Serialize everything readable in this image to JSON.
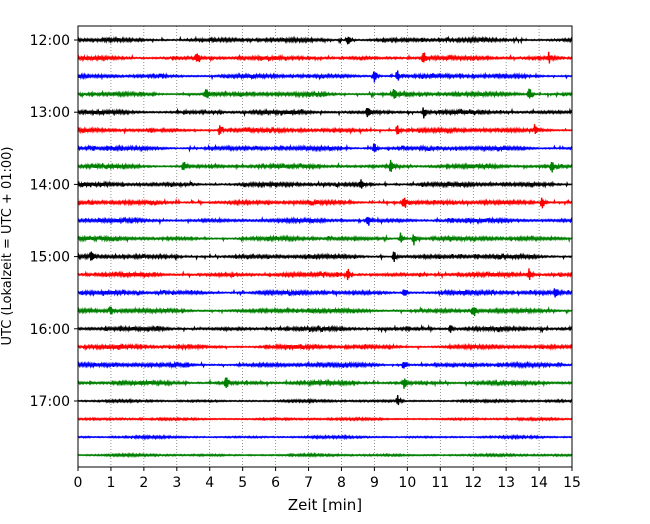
{
  "chart_data": {
    "type": "line",
    "chart_kind": "helicorder",
    "xlabel": "Zeit  [min]",
    "ylabel": "UTC (Lokalzeit = UTC + 01:00)",
    "xlim": [
      0,
      15
    ],
    "x_ticks": [
      "0",
      "1",
      "2",
      "3",
      "4",
      "5",
      "6",
      "7",
      "8",
      "9",
      "10",
      "11",
      "12",
      "13",
      "14",
      "15"
    ],
    "y_tick_labels": [
      "12:00",
      "13:00",
      "14:00",
      "15:00",
      "16:00",
      "17:00"
    ],
    "start_time": "12:00",
    "minutes_per_row": 15,
    "row_count": 24,
    "color_cycle": [
      "#000000",
      "#ff0000",
      "#0000ff",
      "#008000"
    ],
    "grid": "vertical dotted at each minute",
    "row_start_labels": [
      "12:00",
      "12:15",
      "12:30",
      "12:45",
      "13:00",
      "13:15",
      "13:30",
      "13:45",
      "14:00",
      "14:15",
      "14:30",
      "14:45",
      "15:00",
      "15:15",
      "15:30",
      "15:45",
      "16:00",
      "16:15",
      "16:30",
      "16:45",
      "17:00",
      "17:15",
      "17:30",
      "17:45"
    ],
    "events_min": [
      [
        8.2
      ],
      [
        3.6,
        10.5,
        14.3
      ],
      [
        9.0,
        9.7
      ],
      [
        3.9,
        9.6,
        13.7
      ],
      [
        8.8,
        10.5
      ],
      [
        4.3,
        9.7,
        13.9
      ],
      [
        9.0
      ],
      [
        3.2,
        9.5,
        14.4
      ],
      [
        8.6
      ],
      [
        9.9,
        14.1
      ],
      [
        8.8
      ],
      [
        9.8,
        10.2
      ],
      [
        0.4,
        9.6
      ],
      [
        8.2,
        13.7
      ],
      [
        9.9,
        14.5
      ],
      [
        1.0,
        12.0
      ],
      [
        11.3
      ],
      [],
      [
        9.9
      ],
      [
        4.5,
        9.9
      ],
      [
        9.7
      ],
      [],
      [],
      []
    ]
  }
}
